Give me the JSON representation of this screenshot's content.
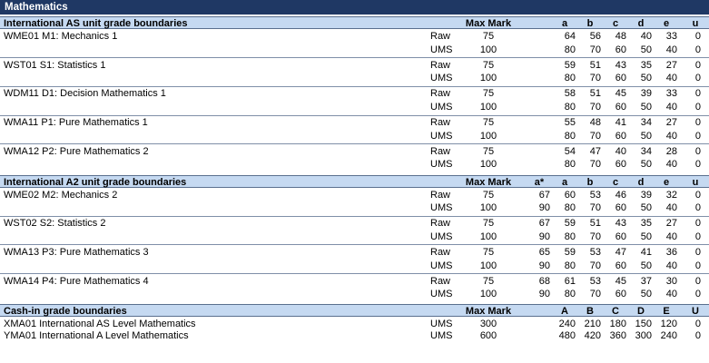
{
  "title": "Mathematics",
  "as_section": {
    "heading": "International AS unit grade boundaries",
    "max_header": "Max Mark",
    "grade_headers": [
      "a",
      "b",
      "c",
      "d",
      "e",
      "u"
    ],
    "units": [
      {
        "code": "WME01",
        "name": "M1: Mechanics 1",
        "raw": {
          "label": "Raw",
          "max": "75",
          "grades": [
            "64",
            "56",
            "48",
            "40",
            "33",
            "0"
          ]
        },
        "ums": {
          "label": "UMS",
          "max": "100",
          "grades": [
            "80",
            "70",
            "60",
            "50",
            "40",
            "0"
          ]
        }
      },
      {
        "code": "WST01",
        "name": "S1: Statistics 1",
        "raw": {
          "label": "Raw",
          "max": "75",
          "grades": [
            "59",
            "51",
            "43",
            "35",
            "27",
            "0"
          ]
        },
        "ums": {
          "label": "UMS",
          "max": "100",
          "grades": [
            "80",
            "70",
            "60",
            "50",
            "40",
            "0"
          ]
        }
      },
      {
        "code": "WDM11",
        "name": "D1: Decision Mathematics 1",
        "raw": {
          "label": "Raw",
          "max": "75",
          "grades": [
            "58",
            "51",
            "45",
            "39",
            "33",
            "0"
          ]
        },
        "ums": {
          "label": "UMS",
          "max": "100",
          "grades": [
            "80",
            "70",
            "60",
            "50",
            "40",
            "0"
          ]
        }
      },
      {
        "code": "WMA11",
        "name": "P1: Pure Mathematics 1",
        "raw": {
          "label": "Raw",
          "max": "75",
          "grades": [
            "55",
            "48",
            "41",
            "34",
            "27",
            "0"
          ]
        },
        "ums": {
          "label": "UMS",
          "max": "100",
          "grades": [
            "80",
            "70",
            "60",
            "50",
            "40",
            "0"
          ]
        }
      },
      {
        "code": "WMA12",
        "name": "P2: Pure Mathematics 2",
        "raw": {
          "label": "Raw",
          "max": "75",
          "grades": [
            "54",
            "47",
            "40",
            "34",
            "28",
            "0"
          ]
        },
        "ums": {
          "label": "UMS",
          "max": "100",
          "grades": [
            "80",
            "70",
            "60",
            "50",
            "40",
            "0"
          ]
        }
      }
    ]
  },
  "a2_section": {
    "heading": "International A2 unit grade boundaries",
    "max_header": "Max Mark",
    "grade_headers": [
      "a*",
      "a",
      "b",
      "c",
      "d",
      "e",
      "u"
    ],
    "units": [
      {
        "code": "WME02",
        "name": "M2: Mechanics 2",
        "raw": {
          "label": "Raw",
          "max": "75",
          "grades": [
            "67",
            "60",
            "53",
            "46",
            "39",
            "32",
            "0"
          ]
        },
        "ums": {
          "label": "UMS",
          "max": "100",
          "grades": [
            "90",
            "80",
            "70",
            "60",
            "50",
            "40",
            "0"
          ]
        }
      },
      {
        "code": "WST02",
        "name": "S2: Statistics 2",
        "raw": {
          "label": "Raw",
          "max": "75",
          "grades": [
            "67",
            "59",
            "51",
            "43",
            "35",
            "27",
            "0"
          ]
        },
        "ums": {
          "label": "UMS",
          "max": "100",
          "grades": [
            "90",
            "80",
            "70",
            "60",
            "50",
            "40",
            "0"
          ]
        }
      },
      {
        "code": "WMA13",
        "name": "P3: Pure Mathematics 3",
        "raw": {
          "label": "Raw",
          "max": "75",
          "grades": [
            "65",
            "59",
            "53",
            "47",
            "41",
            "36",
            "0"
          ]
        },
        "ums": {
          "label": "UMS",
          "max": "100",
          "grades": [
            "90",
            "80",
            "70",
            "60",
            "50",
            "40",
            "0"
          ]
        }
      },
      {
        "code": "WMA14",
        "name": "P4: Pure Mathematics 4",
        "raw": {
          "label": "Raw",
          "max": "75",
          "grades": [
            "68",
            "61",
            "53",
            "45",
            "37",
            "30",
            "0"
          ]
        },
        "ums": {
          "label": "UMS",
          "max": "100",
          "grades": [
            "90",
            "80",
            "70",
            "60",
            "50",
            "40",
            "0"
          ]
        }
      }
    ]
  },
  "cashin_section": {
    "heading": "Cash-in grade boundaries",
    "max_header": "Max Mark",
    "grade_headers": [
      "A",
      "B",
      "C",
      "D",
      "E",
      "U"
    ],
    "rows": [
      {
        "code": "XMA01",
        "name": "International AS Level Mathematics",
        "label": "UMS",
        "max": "300",
        "grades": [
          "240",
          "210",
          "180",
          "150",
          "120",
          "0"
        ]
      },
      {
        "code": "YMA01",
        "name": "International A Level Mathematics",
        "label": "UMS",
        "max": "600",
        "grades": [
          "480",
          "420",
          "360",
          "300",
          "240",
          "0"
        ]
      }
    ]
  },
  "colors": {
    "title_bar": "#1f3864",
    "section_header": "#c5d9f1",
    "separator": "#7f8fa8"
  }
}
